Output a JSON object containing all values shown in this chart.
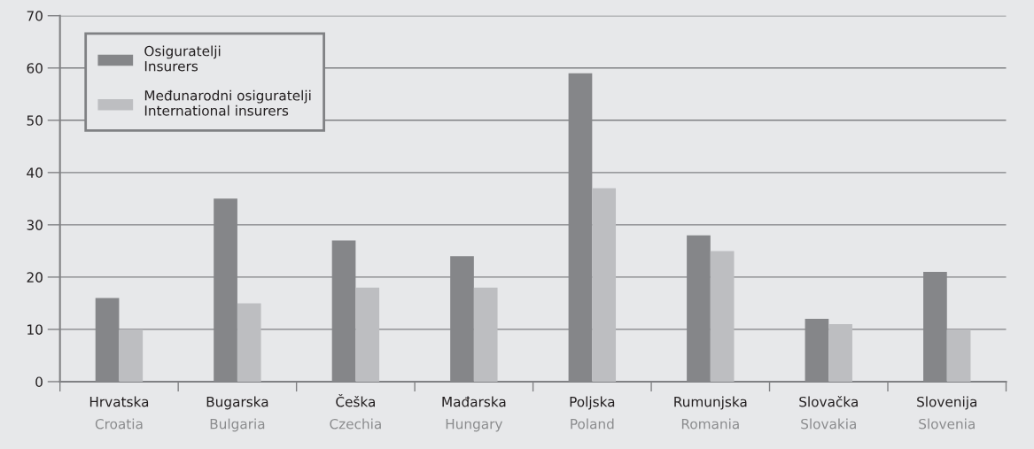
{
  "chart_data": {
    "type": "bar",
    "categories": [
      "Hrvatska\nCroatia",
      "Bugarska\nBulgaria",
      "Češka\nCzechia",
      "Mađarska\nHungary",
      "Poljska\nPoland",
      "Rumunjska\nRomania",
      "Slovačka\nSlovakia",
      "Slovenija\nSlovenia"
    ],
    "series": [
      {
        "name": "Osiguratelji\nInsurers",
        "color": "#858689",
        "values": [
          16,
          35,
          27,
          24,
          59,
          28,
          12,
          21
        ]
      },
      {
        "name": "Međunarodni osiguratelji\nInternational insurers",
        "color": "#bdbec1",
        "values": [
          10,
          15,
          18,
          18,
          37,
          25,
          11,
          10
        ]
      }
    ],
    "ylim": [
      0,
      70
    ],
    "yticks": [
      0,
      10,
      20,
      30,
      40,
      50,
      60,
      70
    ],
    "grid": "y",
    "legend": "top left"
  }
}
